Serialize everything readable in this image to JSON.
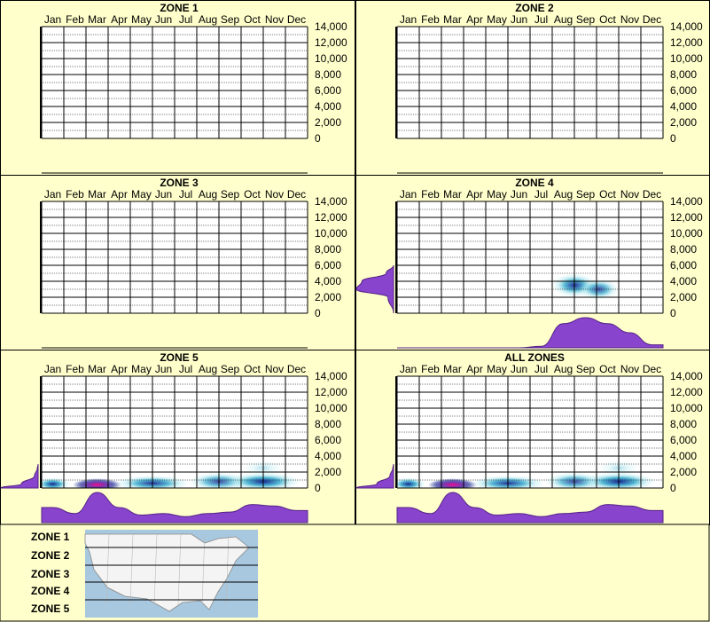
{
  "months": [
    "Jan",
    "Feb",
    "Mar",
    "Apr",
    "May",
    "Jun",
    "Jul",
    "Aug",
    "Sep",
    "Oct",
    "Nov",
    "Dec"
  ],
  "y_ticks": [
    "14,000",
    "12,000",
    "10,000",
    "8,000",
    "6,000",
    "4,000",
    "2,000",
    "0"
  ],
  "colors": {
    "background": "#ffffcc",
    "border": "#000000",
    "density_violet": "#8844cc",
    "heat_light": "#aee8ee",
    "heat_mid": "#33aacc",
    "heat_dark": "#0a1a8a",
    "heat_peak": "#ee1188",
    "map_water": "#a8c8e0",
    "map_land": "#f4f4f4"
  },
  "chart_data": [
    {
      "type": "heatmap",
      "title": "ZONE 1",
      "x_categories": [
        "Jan",
        "Feb",
        "Mar",
        "Apr",
        "May",
        "Jun",
        "Jul",
        "Aug",
        "Sep",
        "Oct",
        "Nov",
        "Dec"
      ],
      "ylim": [
        0,
        14000
      ],
      "hotspots": [],
      "month_density": [],
      "elevation_density": []
    },
    {
      "type": "heatmap",
      "title": "ZONE 2",
      "x_categories": [
        "Jan",
        "Feb",
        "Mar",
        "Apr",
        "May",
        "Jun",
        "Jul",
        "Aug",
        "Sep",
        "Oct",
        "Nov",
        "Dec"
      ],
      "ylim": [
        0,
        14000
      ],
      "hotspots": [],
      "month_density": [],
      "elevation_density": []
    },
    {
      "type": "heatmap",
      "title": "ZONE 3",
      "x_categories": [
        "Jan",
        "Feb",
        "Mar",
        "Apr",
        "May",
        "Jun",
        "Jul",
        "Aug",
        "Sep",
        "Oct",
        "Nov",
        "Dec"
      ],
      "ylim": [
        0,
        14000
      ],
      "hotspots": [],
      "month_density": [],
      "elevation_density": []
    },
    {
      "type": "heatmap",
      "title": "ZONE 4",
      "x_categories": [
        "Jan",
        "Feb",
        "Mar",
        "Apr",
        "May",
        "Jun",
        "Jul",
        "Aug",
        "Sep",
        "Oct",
        "Nov",
        "Dec"
      ],
      "ylim": [
        0,
        14000
      ],
      "hotspots": [
        {
          "month": 8.5,
          "elevation": 3500,
          "intensity": 0.55,
          "sx": 0.9,
          "sy": 900
        },
        {
          "month": 9.6,
          "elevation": 3000,
          "intensity": 0.45,
          "sx": 0.8,
          "sy": 800
        }
      ],
      "month_density": [
        0,
        0,
        0,
        0,
        0,
        0,
        0.05,
        0.8,
        1.0,
        0.8,
        0.5,
        0.1
      ],
      "elevation_density": [
        {
          "elevation": 0,
          "value": 0
        },
        {
          "elevation": 2000,
          "value": 0.15
        },
        {
          "elevation": 3000,
          "value": 1.0
        },
        {
          "elevation": 4000,
          "value": 0.85
        },
        {
          "elevation": 5000,
          "value": 0.2
        },
        {
          "elevation": 6000,
          "value": 0
        }
      ]
    },
    {
      "type": "heatmap",
      "title": "ZONE 5",
      "x_categories": [
        "Jan",
        "Feb",
        "Mar",
        "Apr",
        "May",
        "Jun",
        "Jul",
        "Aug",
        "Sep",
        "Oct",
        "Nov",
        "Dec"
      ],
      "ylim": [
        0,
        14000
      ],
      "hotspots": [
        {
          "month": 3.0,
          "elevation": 400,
          "intensity": 1.0,
          "sx": 1.0,
          "sy": 500
        },
        {
          "month": 1.0,
          "elevation": 500,
          "intensity": 0.6,
          "sx": 0.7,
          "sy": 500
        },
        {
          "month": 5.5,
          "elevation": 600,
          "intensity": 0.55,
          "sx": 1.5,
          "sy": 600
        },
        {
          "month": 8.5,
          "elevation": 800,
          "intensity": 0.45,
          "sx": 1.2,
          "sy": 700
        },
        {
          "month": 10.5,
          "elevation": 800,
          "intensity": 0.6,
          "sx": 1.5,
          "sy": 700
        },
        {
          "month": 10.5,
          "elevation": 2500,
          "intensity": 0.12,
          "sx": 0.8,
          "sy": 600
        }
      ],
      "month_density": [
        0.5,
        0.3,
        1.0,
        0.5,
        0.25,
        0.3,
        0.2,
        0.3,
        0.35,
        0.6,
        0.55,
        0.4
      ],
      "elevation_density": [
        {
          "elevation": 0,
          "value": 1.0
        },
        {
          "elevation": 500,
          "value": 0.45
        },
        {
          "elevation": 1500,
          "value": 0.1
        },
        {
          "elevation": 2500,
          "value": 0.02
        },
        {
          "elevation": 3000,
          "value": 0
        }
      ]
    },
    {
      "type": "heatmap",
      "title": "ALL ZONES",
      "x_categories": [
        "Jan",
        "Feb",
        "Mar",
        "Apr",
        "May",
        "Jun",
        "Jul",
        "Aug",
        "Sep",
        "Oct",
        "Nov",
        "Dec"
      ],
      "ylim": [
        0,
        14000
      ],
      "hotspots": [
        {
          "month": 3.0,
          "elevation": 400,
          "intensity": 1.0,
          "sx": 1.0,
          "sy": 500
        },
        {
          "month": 1.0,
          "elevation": 500,
          "intensity": 0.6,
          "sx": 0.7,
          "sy": 500
        },
        {
          "month": 5.5,
          "elevation": 600,
          "intensity": 0.55,
          "sx": 1.5,
          "sy": 600
        },
        {
          "month": 8.5,
          "elevation": 800,
          "intensity": 0.45,
          "sx": 1.2,
          "sy": 700
        },
        {
          "month": 10.5,
          "elevation": 800,
          "intensity": 0.6,
          "sx": 1.5,
          "sy": 700
        },
        {
          "month": 10.5,
          "elevation": 2500,
          "intensity": 0.15,
          "sx": 0.8,
          "sy": 600
        }
      ],
      "month_density": [
        0.5,
        0.3,
        1.0,
        0.5,
        0.25,
        0.3,
        0.2,
        0.3,
        0.35,
        0.6,
        0.55,
        0.4
      ],
      "elevation_density": [
        {
          "elevation": 0,
          "value": 1.0
        },
        {
          "elevation": 500,
          "value": 0.45
        },
        {
          "elevation": 1500,
          "value": 0.1
        },
        {
          "elevation": 2500,
          "value": 0.02
        },
        {
          "elevation": 3000,
          "value": 0
        }
      ]
    }
  ],
  "legend": {
    "zones": [
      "ZONE 1",
      "ZONE 2",
      "ZONE 3",
      "ZONE 4",
      "ZONE 5"
    ]
  }
}
